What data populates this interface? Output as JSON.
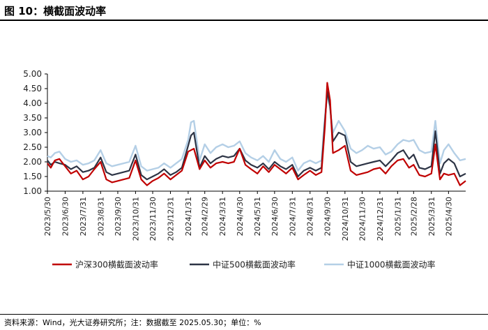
{
  "header": {
    "title": "图 10：横截面波动率"
  },
  "footer": {
    "source": "资料来源：Wind，光大证券研究所；注：数据截至 2025.05.30；单位：%"
  },
  "colors": {
    "csi300": "#c00000",
    "csi500": "#2d3445",
    "csi1000": "#b4cfe6"
  },
  "chart_data": {
    "type": "line",
    "title": "",
    "xlabel": "",
    "ylabel": "",
    "ylim": [
      1.0,
      5.0
    ],
    "yticks": [
      "1.00",
      "1.50",
      "2.00",
      "2.50",
      "3.00",
      "3.50",
      "4.00",
      "4.50",
      "5.00"
    ],
    "xlim": [
      "2023-05-30",
      "2025-05-30"
    ],
    "xticks": [
      "2023/5/30",
      "2023/6/30",
      "2023/7/31",
      "2023/8/31",
      "2023/9/30",
      "2023/10/31",
      "2023/11/30",
      "2023/12/31",
      "2024/1/31",
      "2024/2/29",
      "2024/3/31",
      "2024/4/30",
      "2024/5/31",
      "2024/6/30",
      "2024/7/31",
      "2024/8/31",
      "2024/9/30",
      "2024/10/31",
      "2024/11/30",
      "2024/12/31",
      "2025/1/31",
      "2025/2/28",
      "2025/3/31",
      "2025/4/30"
    ],
    "legend_position": "bottom",
    "series": [
      {
        "name": "沪深300横截面波动率",
        "x": [
          "2023-05-30",
          "2023-06-05",
          "2023-06-12",
          "2023-06-20",
          "2023-06-30",
          "2023-07-10",
          "2023-07-20",
          "2023-07-31",
          "2023-08-10",
          "2023-08-20",
          "2023-08-31",
          "2023-09-10",
          "2023-09-20",
          "2023-09-30",
          "2023-10-10",
          "2023-10-20",
          "2023-10-31",
          "2023-11-10",
          "2023-11-20",
          "2023-11-30",
          "2023-12-10",
          "2023-12-20",
          "2023-12-31",
          "2024-01-10",
          "2024-01-20",
          "2024-01-31",
          "2024-02-05",
          "2024-02-10",
          "2024-02-20",
          "2024-02-29",
          "2024-03-10",
          "2024-03-20",
          "2024-03-31",
          "2024-04-10",
          "2024-04-20",
          "2024-04-30",
          "2024-05-10",
          "2024-05-20",
          "2024-05-31",
          "2024-06-10",
          "2024-06-20",
          "2024-06-30",
          "2024-07-10",
          "2024-07-20",
          "2024-07-31",
          "2024-08-10",
          "2024-08-20",
          "2024-08-31",
          "2024-09-10",
          "2024-09-20",
          "2024-09-26",
          "2024-09-30",
          "2024-10-05",
          "2024-10-10",
          "2024-10-20",
          "2024-10-31",
          "2024-11-10",
          "2024-11-20",
          "2024-11-30",
          "2024-12-10",
          "2024-12-20",
          "2024-12-31",
          "2025-01-10",
          "2025-01-20",
          "2025-01-31",
          "2025-02-10",
          "2025-02-20",
          "2025-02-28",
          "2025-03-10",
          "2025-03-20",
          "2025-03-31",
          "2025-04-07",
          "2025-04-15",
          "2025-04-22",
          "2025-04-30",
          "2025-05-10",
          "2025-05-20",
          "2025-05-30"
        ],
        "values": [
          1.95,
          1.8,
          2.05,
          2.1,
          1.85,
          1.6,
          1.7,
          1.4,
          1.5,
          1.75,
          2.0,
          1.4,
          1.3,
          1.35,
          1.4,
          1.45,
          2.05,
          1.4,
          1.2,
          1.35,
          1.45,
          1.6,
          1.4,
          1.55,
          1.7,
          2.35,
          2.4,
          2.45,
          1.75,
          2.05,
          1.8,
          1.95,
          2.0,
          1.95,
          2.0,
          2.45,
          1.9,
          1.75,
          1.6,
          1.85,
          1.65,
          1.9,
          1.75,
          1.6,
          1.8,
          1.4,
          1.55,
          1.7,
          1.55,
          1.65,
          3.2,
          4.7,
          4.1,
          2.3,
          2.4,
          2.55,
          1.7,
          1.55,
          1.6,
          1.65,
          1.75,
          1.8,
          1.6,
          1.85,
          2.05,
          2.1,
          1.8,
          1.9,
          1.55,
          1.5,
          1.6,
          2.6,
          1.4,
          1.6,
          1.55,
          1.6,
          1.2,
          1.35
        ]
      },
      {
        "name": "中证500横截面波动率",
        "x": [
          "2023-05-30",
          "2023-06-05",
          "2023-06-12",
          "2023-06-20",
          "2023-06-30",
          "2023-07-10",
          "2023-07-20",
          "2023-07-31",
          "2023-08-10",
          "2023-08-20",
          "2023-08-31",
          "2023-09-10",
          "2023-09-20",
          "2023-09-30",
          "2023-10-10",
          "2023-10-20",
          "2023-10-31",
          "2023-11-10",
          "2023-11-20",
          "2023-11-30",
          "2023-12-10",
          "2023-12-20",
          "2023-12-31",
          "2024-01-10",
          "2024-01-20",
          "2024-01-31",
          "2024-02-05",
          "2024-02-10",
          "2024-02-20",
          "2024-02-29",
          "2024-03-10",
          "2024-03-20",
          "2024-03-31",
          "2024-04-10",
          "2024-04-20",
          "2024-04-30",
          "2024-05-10",
          "2024-05-20",
          "2024-05-31",
          "2024-06-10",
          "2024-06-20",
          "2024-06-30",
          "2024-07-10",
          "2024-07-20",
          "2024-07-31",
          "2024-08-10",
          "2024-08-20",
          "2024-08-31",
          "2024-09-10",
          "2024-09-20",
          "2024-09-26",
          "2024-09-30",
          "2024-10-05",
          "2024-10-10",
          "2024-10-20",
          "2024-10-31",
          "2024-11-10",
          "2024-11-20",
          "2024-11-30",
          "2024-12-10",
          "2024-12-20",
          "2024-12-31",
          "2025-01-10",
          "2025-01-20",
          "2025-01-31",
          "2025-02-10",
          "2025-02-20",
          "2025-02-28",
          "2025-03-10",
          "2025-03-20",
          "2025-03-31",
          "2025-04-07",
          "2025-04-15",
          "2025-04-22",
          "2025-04-30",
          "2025-05-10",
          "2025-05-20",
          "2025-05-30"
        ],
        "values": [
          2.05,
          1.9,
          2.0,
          1.95,
          1.9,
          1.75,
          1.85,
          1.65,
          1.7,
          1.8,
          2.15,
          1.65,
          1.55,
          1.6,
          1.65,
          1.7,
          2.25,
          1.55,
          1.4,
          1.5,
          1.6,
          1.75,
          1.55,
          1.65,
          1.8,
          2.55,
          2.9,
          3.0,
          1.8,
          2.2,
          1.95,
          2.1,
          2.2,
          2.15,
          2.2,
          2.45,
          2.05,
          1.9,
          1.8,
          1.95,
          1.75,
          2.0,
          1.85,
          1.75,
          1.9,
          1.5,
          1.7,
          1.8,
          1.7,
          1.8,
          3.4,
          4.4,
          3.9,
          2.7,
          3.0,
          2.9,
          2.0,
          1.85,
          1.9,
          1.95,
          2.0,
          2.05,
          1.85,
          2.05,
          2.3,
          2.4,
          2.1,
          2.25,
          1.8,
          1.75,
          1.85,
          3.05,
          1.6,
          1.95,
          2.1,
          1.95,
          1.5,
          1.6
        ]
      },
      {
        "name": "中证1000横截面波动率",
        "x": [
          "2023-05-30",
          "2023-06-05",
          "2023-06-12",
          "2023-06-20",
          "2023-06-30",
          "2023-07-10",
          "2023-07-20",
          "2023-07-31",
          "2023-08-10",
          "2023-08-20",
          "2023-08-31",
          "2023-09-10",
          "2023-09-20",
          "2023-09-30",
          "2023-10-10",
          "2023-10-20",
          "2023-10-31",
          "2023-11-10",
          "2023-11-20",
          "2023-11-30",
          "2023-12-10",
          "2023-12-20",
          "2023-12-31",
          "2024-01-10",
          "2024-01-20",
          "2024-01-31",
          "2024-02-05",
          "2024-02-10",
          "2024-02-20",
          "2024-02-29",
          "2024-03-10",
          "2024-03-20",
          "2024-03-31",
          "2024-04-10",
          "2024-04-20",
          "2024-04-30",
          "2024-05-10",
          "2024-05-20",
          "2024-05-31",
          "2024-06-10",
          "2024-06-20",
          "2024-06-30",
          "2024-07-10",
          "2024-07-20",
          "2024-07-31",
          "2024-08-10",
          "2024-08-20",
          "2024-08-31",
          "2024-09-10",
          "2024-09-20",
          "2024-09-26",
          "2024-09-30",
          "2024-10-05",
          "2024-10-10",
          "2024-10-20",
          "2024-10-31",
          "2024-11-10",
          "2024-11-20",
          "2024-11-30",
          "2024-12-10",
          "2024-12-20",
          "2024-12-31",
          "2025-01-10",
          "2025-01-20",
          "2025-01-31",
          "2025-02-10",
          "2025-02-20",
          "2025-02-28",
          "2025-03-10",
          "2025-03-20",
          "2025-03-31",
          "2025-04-07",
          "2025-04-15",
          "2025-04-22",
          "2025-04-30",
          "2025-05-10",
          "2025-05-20",
          "2025-05-30"
        ],
        "values": [
          2.2,
          2.15,
          2.3,
          2.35,
          2.1,
          2.0,
          2.05,
          1.9,
          1.95,
          2.05,
          2.4,
          1.95,
          1.85,
          1.9,
          1.95,
          2.0,
          2.55,
          1.85,
          1.7,
          1.75,
          1.8,
          1.95,
          1.8,
          1.95,
          2.1,
          2.75,
          3.35,
          3.4,
          2.05,
          2.6,
          2.3,
          2.5,
          2.6,
          2.5,
          2.55,
          2.7,
          2.3,
          2.15,
          2.05,
          2.2,
          2.0,
          2.4,
          2.1,
          2.0,
          2.15,
          1.7,
          1.95,
          2.05,
          1.95,
          2.05,
          3.55,
          4.35,
          3.8,
          3.0,
          3.4,
          3.05,
          2.45,
          2.3,
          2.4,
          2.55,
          2.45,
          2.5,
          2.25,
          2.35,
          2.6,
          2.75,
          2.7,
          2.75,
          2.4,
          2.3,
          2.35,
          3.4,
          1.95,
          2.4,
          2.6,
          2.3,
          2.05,
          2.1
        ]
      }
    ]
  }
}
